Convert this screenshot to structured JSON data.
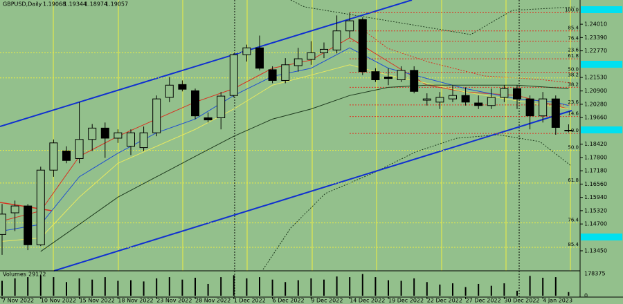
{
  "chart_data": {
    "type": "candlestick",
    "symbol": "GBPUSD,Daily",
    "categories": [
      "7 Nov 2022",
      null,
      null,
      "10 Nov 2022",
      null,
      null,
      "15 Nov 2022",
      null,
      null,
      "18 Nov 2022",
      null,
      null,
      "23 Nov 2022",
      null,
      null,
      "28 Nov 2022",
      null,
      null,
      "1 Dec 2022",
      null,
      null,
      "6 Dec 2022",
      null,
      null,
      "9 Dec 2022",
      null,
      null,
      "14 Dec 2022",
      null,
      null,
      "19 Dec 2022",
      null,
      null,
      "22 Dec 2022",
      null,
      null,
      "27 Dec 2022",
      null,
      null,
      "30 Dec 2022",
      null,
      null,
      "4 Jan 2023",
      null,
      null
    ],
    "open": [
      1.1421,
      1.1522,
      1.1554,
      1.1373,
      1.1721,
      1.181,
      1.1775,
      1.1864,
      1.1917,
      1.187,
      1.1832,
      1.1826,
      1.1895,
      1.206,
      1.212,
      1.2091,
      1.1965,
      1.1965,
      1.2069,
      1.2259,
      1.2291,
      1.2189,
      1.2139,
      1.2208,
      1.2237,
      1.2268,
      1.2281,
      1.237,
      1.2423,
      1.218,
      1.2155,
      1.2142,
      1.2186,
      1.2047,
      1.2038,
      1.2053,
      1.2069,
      1.2034,
      1.2022,
      1.206,
      1.2101,
      1.2053,
      1.1974,
      1.2053,
      1.19068
    ],
    "high": [
      1.1563,
      1.1579,
      1.1563,
      1.1737,
      1.1864,
      1.1832,
      1.2038,
      1.1936,
      1.1943,
      1.1911,
      1.1911,
      1.1924,
      1.2069,
      1.2155,
      1.2139,
      1.2101,
      1.199,
      1.2085,
      1.2265,
      1.2306,
      1.2348,
      1.2205,
      1.2243,
      1.2291,
      1.2322,
      1.2316,
      1.2442,
      1.2455,
      1.2433,
      1.2196,
      1.2196,
      1.2205,
      1.2205,
      1.2079,
      1.2085,
      1.2117,
      1.2107,
      1.2069,
      1.2101,
      1.2117,
      1.2117,
      1.2069,
      1.2085,
      1.2069,
      1.19344
    ],
    "low": [
      1.1326,
      1.1437,
      1.1348,
      1.1367,
      1.169,
      1.1753,
      1.1753,
      1.181,
      1.1778,
      1.1848,
      1.1791,
      1.181,
      1.1879,
      1.2038,
      1.2088,
      1.1959,
      1.1943,
      1.1911,
      1.206,
      1.2227,
      1.2186,
      1.2126,
      1.2126,
      1.218,
      1.2212,
      1.2243,
      1.2265,
      1.2338,
      1.2164,
      1.2132,
      1.2117,
      1.2132,
      1.2079,
      1.2022,
      1.2006,
      1.2038,
      1.2022,
      1.2006,
      1.2006,
      1.2038,
      1.2006,
      1.1911,
      1.1943,
      1.1886,
      1.18974
    ],
    "close": [
      1.1516,
      1.1554,
      1.1373,
      1.1721,
      1.1848,
      1.1766,
      1.1864,
      1.1917,
      1.187,
      1.1895,
      1.1895,
      1.1895,
      1.2053,
      1.2117,
      1.2098,
      1.1974,
      1.1955,
      1.2066,
      1.2259,
      1.2291,
      1.2196,
      1.2139,
      1.2212,
      1.224,
      1.2268,
      1.2284,
      1.237,
      1.2417,
      1.218,
      1.2142,
      1.2148,
      1.2186,
      1.2088,
      1.2053,
      1.206,
      1.2069,
      1.2038,
      1.2022,
      1.206,
      1.2101,
      1.2053,
      1.1974,
      1.2053,
      1.192,
      1.19057
    ],
    "up_color": "#93c08c",
    "down_color": "#000000",
    "ylim": [
      1.1258,
      1.2514
    ],
    "yticks": [
      {
        "value": 1.2401,
        "label": "1.24010"
      },
      {
        "value": 1.2339,
        "label": "1.23390"
      },
      {
        "value": 1.2277,
        "label": "1.22770"
      },
      {
        "value": 1.2153,
        "label": "1.21530"
      },
      {
        "value": 1.209,
        "label": "1.20900"
      },
      {
        "value": 1.2028,
        "label": "1.20280"
      },
      {
        "value": 1.1966,
        "label": "1.19660"
      },
      {
        "value": 1.1842,
        "label": "1.18420"
      },
      {
        "value": 1.178,
        "label": "1.17800"
      },
      {
        "value": 1.1718,
        "label": "1.17180"
      },
      {
        "value": 1.1656,
        "label": "1.16560"
      },
      {
        "value": 1.1594,
        "label": "1.15940"
      },
      {
        "value": 1.1532,
        "label": "1.15320"
      },
      {
        "value": 1.147,
        "label": "1.14700"
      },
      {
        "value": 1.1345,
        "label": "1.13450"
      }
    ],
    "overlays": [
      {
        "color": "#d83020",
        "x": [
          0,
          3,
          6,
          9,
          12,
          15,
          18,
          21,
          24,
          27,
          30,
          33,
          36,
          40,
          43,
          44
        ],
        "values": [
          1.1484,
          1.1531,
          1.1785,
          1.1879,
          1.1959,
          1.2038,
          1.2101,
          1.2196,
          1.2234,
          1.2338,
          1.2227,
          1.2117,
          1.2085,
          1.2069,
          1.2022,
          1.2006
        ]
      },
      {
        "color": "#2050d0",
        "x": [
          0,
          3,
          6,
          9,
          12,
          15,
          18,
          21,
          24,
          27,
          30,
          33,
          36,
          40,
          43,
          44
        ],
        "values": [
          1.1437,
          1.1468,
          1.169,
          1.18,
          1.1895,
          1.1959,
          1.2069,
          1.2158,
          1.2196,
          1.2291,
          1.2196,
          1.2148,
          1.2101,
          1.2053,
          1.2038,
          1.2022
        ]
      },
      {
        "color": "#e8e860",
        "x": [
          0,
          3,
          6,
          9,
          12,
          15,
          18,
          21,
          24,
          27,
          30,
          33,
          36,
          40,
          44
        ],
        "values": [
          1.1389,
          1.1405,
          1.1595,
          1.1753,
          1.1832,
          1.1911,
          1.2006,
          1.2117,
          1.2164,
          1.2212,
          1.2164,
          1.2126,
          1.2085,
          1.2044,
          1.2006
        ]
      },
      {
        "color": "#1e3a1e",
        "x": [
          3,
          6,
          9,
          12,
          15,
          18,
          21,
          24,
          27,
          30,
          33,
          36,
          40,
          44
        ],
        "values": [
          1.1342,
          1.1468,
          1.1595,
          1.169,
          1.1785,
          1.1879,
          1.1959,
          1.2006,
          1.2069,
          1.2107,
          1.2117,
          1.2117,
          1.2117,
          1.2101
        ]
      }
    ],
    "fib_color": "#e03020",
    "fib_levels": [
      {
        "value": 1.2455,
        "label": "100.0"
      },
      {
        "value": 1.237,
        "label": "85.4"
      },
      {
        "value": 1.2322,
        "label": "76.4"
      },
      {
        "value": 1.224,
        "label": "61.8"
      },
      {
        "value": 1.2177,
        "label": "50.0"
      },
      {
        "value": 1.2107,
        "label": "38.2"
      },
      {
        "value": 1.2025,
        "label": "23.6"
      },
      {
        "value": 1.1971,
        "label": "14.6"
      },
      {
        "value": 1.1892,
        "label": "0.0"
      }
    ],
    "fib_color_2": "#f0f040",
    "fib_levels_2": [
      {
        "value": 1.2268,
        "label": "23.6"
      },
      {
        "value": 1.2151,
        "label": "38.2"
      },
      {
        "value": 1.1813,
        "label": "50.0"
      },
      {
        "value": 1.1661,
        "label": "61.8"
      },
      {
        "value": 1.1475,
        "label": "76.4"
      },
      {
        "value": 1.1361,
        "label": "85.4"
      }
    ],
    "volume_label": "Volumes",
    "volumes": [
      120000,
      140000,
      150000,
      165000,
      150000,
      110000,
      140000,
      130000,
      150000,
      120000,
      125000,
      115000,
      140000,
      150000,
      130000,
      145000,
      95000,
      150000,
      165000,
      140000,
      150000,
      130000,
      110000,
      125000,
      140000,
      130000,
      155000,
      150000,
      175000,
      150000,
      125000,
      120000,
      140000,
      110000,
      90000,
      100000,
      70000,
      95000,
      80000,
      100000,
      40000,
      160000,
      145000,
      150000,
      29172
    ],
    "volume_ylim": [
      0,
      178375
    ],
    "volume_yticks": [
      0,
      178375
    ]
  }
}
